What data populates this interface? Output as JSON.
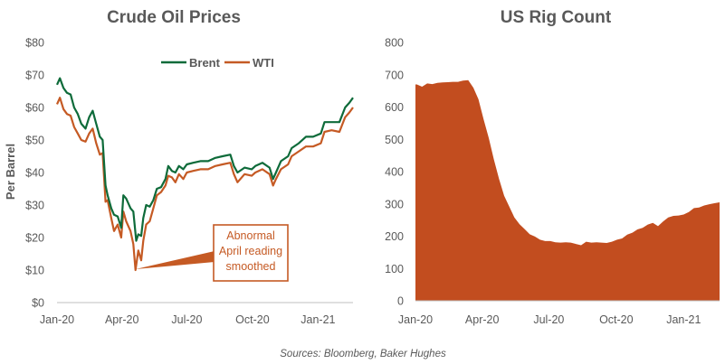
{
  "source_note": "Sources: Bloomberg, Baker Hughes",
  "colors": {
    "brent": "#0e6b3a",
    "wti": "#c55a24",
    "rig_fill": "#c24d1f",
    "annot_box": "#c55a24"
  },
  "chart_data": [
    {
      "type": "line",
      "title": "Crude Oil Prices",
      "ylabel": "Per Barrel",
      "ylim": [
        0,
        80
      ],
      "yticks": [
        "$0",
        "$10",
        "$20",
        "$30",
        "$40",
        "$50",
        "$60",
        "$70",
        "$80"
      ],
      "xticks": [
        "Jan-20",
        "Apr-20",
        "Jul-20",
        "Oct-20",
        "Jan-21"
      ],
      "xrange": [
        "2020-01-01",
        "2021-02-19"
      ],
      "legend": "top-center",
      "annotation": {
        "lines": [
          "Abnormal",
          "April reading",
          "smoothed"
        ],
        "points_to": [
          "2020-04-20",
          10
        ]
      },
      "series": [
        {
          "name": "Brent",
          "points": [
            [
              "2020-01-01",
              67
            ],
            [
              "2020-01-05",
              69
            ],
            [
              "2020-01-10",
              66
            ],
            [
              "2020-01-15",
              64.5
            ],
            [
              "2020-01-20",
              64
            ],
            [
              "2020-01-25",
              60
            ],
            [
              "2020-01-30",
              58
            ],
            [
              "2020-02-04",
              55
            ],
            [
              "2020-02-10",
              53.5
            ],
            [
              "2020-02-15",
              57
            ],
            [
              "2020-02-20",
              59
            ],
            [
              "2020-02-25",
              55
            ],
            [
              "2020-03-01",
              51
            ],
            [
              "2020-03-05",
              50
            ],
            [
              "2020-03-09",
              36
            ],
            [
              "2020-03-12",
              33
            ],
            [
              "2020-03-17",
              29
            ],
            [
              "2020-03-21",
              27
            ],
            [
              "2020-03-26",
              26.5
            ],
            [
              "2020-03-31",
              23
            ],
            [
              "2020-04-03",
              33
            ],
            [
              "2020-04-07",
              32
            ],
            [
              "2020-04-13",
              29
            ],
            [
              "2020-04-17",
              28
            ],
            [
              "2020-04-21",
              19
            ],
            [
              "2020-04-24",
              21
            ],
            [
              "2020-04-28",
              20.5
            ],
            [
              "2020-05-01",
              26
            ],
            [
              "2020-05-05",
              30
            ],
            [
              "2020-05-10",
              29.5
            ],
            [
              "2020-05-15",
              31.5
            ],
            [
              "2020-05-20",
              35
            ],
            [
              "2020-05-26",
              35.5
            ],
            [
              "2020-06-01",
              38
            ],
            [
              "2020-06-05",
              42
            ],
            [
              "2020-06-10",
              40.5
            ],
            [
              "2020-06-15",
              40
            ],
            [
              "2020-06-20",
              42
            ],
            [
              "2020-06-26",
              41
            ],
            [
              "2020-07-01",
              42.5
            ],
            [
              "2020-07-10",
              43
            ],
            [
              "2020-07-20",
              43.5
            ],
            [
              "2020-07-31",
              43.5
            ],
            [
              "2020-08-10",
              44.5
            ],
            [
              "2020-08-20",
              45
            ],
            [
              "2020-08-31",
              45.5
            ],
            [
              "2020-09-05",
              42
            ],
            [
              "2020-09-10",
              40
            ],
            [
              "2020-09-20",
              41.5
            ],
            [
              "2020-09-30",
              41
            ],
            [
              "2020-10-05",
              42
            ],
            [
              "2020-10-15",
              43
            ],
            [
              "2020-10-25",
              41.5
            ],
            [
              "2020-10-30",
              38
            ],
            [
              "2020-11-03",
              40
            ],
            [
              "2020-11-10",
              43.5
            ],
            [
              "2020-11-20",
              45
            ],
            [
              "2020-11-25",
              47.5
            ],
            [
              "2020-12-05",
              49
            ],
            [
              "2020-12-15",
              51
            ],
            [
              "2020-12-25",
              51
            ],
            [
              "2021-01-05",
              52
            ],
            [
              "2021-01-10",
              55.5
            ],
            [
              "2021-01-20",
              55.5
            ],
            [
              "2021-01-31",
              55.5
            ],
            [
              "2021-02-08",
              60
            ],
            [
              "2021-02-14",
              61.5
            ],
            [
              "2021-02-19",
              63
            ]
          ]
        },
        {
          "name": "WTI",
          "points": [
            [
              "2020-01-01",
              61
            ],
            [
              "2020-01-05",
              63
            ],
            [
              "2020-01-10",
              59.5
            ],
            [
              "2020-01-15",
              58
            ],
            [
              "2020-01-20",
              57.5
            ],
            [
              "2020-01-25",
              54
            ],
            [
              "2020-01-30",
              52
            ],
            [
              "2020-02-04",
              50
            ],
            [
              "2020-02-10",
              49.5
            ],
            [
              "2020-02-15",
              52
            ],
            [
              "2020-02-20",
              53.5
            ],
            [
              "2020-02-25",
              49
            ],
            [
              "2020-03-01",
              45.5
            ],
            [
              "2020-03-05",
              46
            ],
            [
              "2020-03-09",
              31
            ],
            [
              "2020-03-12",
              31.5
            ],
            [
              "2020-03-17",
              26
            ],
            [
              "2020-03-21",
              22
            ],
            [
              "2020-03-26",
              24
            ],
            [
              "2020-03-31",
              20
            ],
            [
              "2020-04-03",
              28
            ],
            [
              "2020-04-07",
              25
            ],
            [
              "2020-04-13",
              22
            ],
            [
              "2020-04-17",
              18
            ],
            [
              "2020-04-20",
              10
            ],
            [
              "2020-04-24",
              16
            ],
            [
              "2020-04-28",
              13
            ],
            [
              "2020-05-01",
              19
            ],
            [
              "2020-05-05",
              24
            ],
            [
              "2020-05-10",
              25
            ],
            [
              "2020-05-15",
              29
            ],
            [
              "2020-05-20",
              33
            ],
            [
              "2020-05-26",
              34
            ],
            [
              "2020-06-01",
              36
            ],
            [
              "2020-06-05",
              39
            ],
            [
              "2020-06-10",
              38.5
            ],
            [
              "2020-06-15",
              37
            ],
            [
              "2020-06-20",
              39.5
            ],
            [
              "2020-06-26",
              38
            ],
            [
              "2020-07-01",
              40
            ],
            [
              "2020-07-10",
              40.5
            ],
            [
              "2020-07-20",
              41
            ],
            [
              "2020-07-31",
              41
            ],
            [
              "2020-08-10",
              42
            ],
            [
              "2020-08-20",
              42.5
            ],
            [
              "2020-08-31",
              43
            ],
            [
              "2020-09-05",
              39.5
            ],
            [
              "2020-09-10",
              37
            ],
            [
              "2020-09-20",
              39.5
            ],
            [
              "2020-09-30",
              39
            ],
            [
              "2020-10-05",
              40
            ],
            [
              "2020-10-15",
              41
            ],
            [
              "2020-10-25",
              39.5
            ],
            [
              "2020-10-30",
              36
            ],
            [
              "2020-11-03",
              38
            ],
            [
              "2020-11-10",
              41
            ],
            [
              "2020-11-20",
              42.5
            ],
            [
              "2020-11-25",
              45
            ],
            [
              "2020-12-05",
              46.5
            ],
            [
              "2020-12-15",
              48
            ],
            [
              "2020-12-25",
              48
            ],
            [
              "2021-01-05",
              49
            ],
            [
              "2021-01-10",
              52.5
            ],
            [
              "2021-01-20",
              53
            ],
            [
              "2021-01-31",
              52.5
            ],
            [
              "2021-02-08",
              57
            ],
            [
              "2021-02-14",
              58.5
            ],
            [
              "2021-02-19",
              60
            ]
          ]
        }
      ]
    },
    {
      "type": "area",
      "title": "US Rig Count",
      "ylim": [
        0,
        800
      ],
      "yticks": [
        "0",
        "100",
        "200",
        "300",
        "400",
        "500",
        "600",
        "700",
        "800"
      ],
      "xticks": [
        "Jan-20",
        "Apr-20",
        "Jul-20",
        "Oct-20",
        "Jan-21"
      ],
      "xrange": [
        "2020-01-01",
        "2021-02-19"
      ],
      "series": [
        {
          "points": [
            [
              "2020-01-03",
              670
            ],
            [
              "2020-01-10",
              663
            ],
            [
              "2020-01-17",
              673
            ],
            [
              "2020-01-24",
              671
            ],
            [
              "2020-01-31",
              675
            ],
            [
              "2020-02-07",
              676
            ],
            [
              "2020-02-14",
              677
            ],
            [
              "2020-02-21",
              678
            ],
            [
              "2020-02-28",
              678
            ],
            [
              "2020-03-06",
              682
            ],
            [
              "2020-03-13",
              683
            ],
            [
              "2020-03-20",
              660
            ],
            [
              "2020-03-27",
              624
            ],
            [
              "2020-04-03",
              562
            ],
            [
              "2020-04-10",
              504
            ],
            [
              "2020-04-17",
              438
            ],
            [
              "2020-04-24",
              378
            ],
            [
              "2020-05-01",
              325
            ],
            [
              "2020-05-08",
              292
            ],
            [
              "2020-05-15",
              258
            ],
            [
              "2020-05-22",
              237
            ],
            [
              "2020-05-29",
              222
            ],
            [
              "2020-06-05",
              206
            ],
            [
              "2020-06-12",
              199
            ],
            [
              "2020-06-19",
              189
            ],
            [
              "2020-06-26",
              185
            ],
            [
              "2020-07-03",
              185
            ],
            [
              "2020-07-10",
              181
            ],
            [
              "2020-07-17",
              180
            ],
            [
              "2020-07-24",
              181
            ],
            [
              "2020-07-31",
              180
            ],
            [
              "2020-08-07",
              176
            ],
            [
              "2020-08-14",
              172
            ],
            [
              "2020-08-21",
              183
            ],
            [
              "2020-08-28",
              180
            ],
            [
              "2020-09-04",
              181
            ],
            [
              "2020-09-11",
              180
            ],
            [
              "2020-09-18",
              179
            ],
            [
              "2020-09-25",
              183
            ],
            [
              "2020-10-02",
              189
            ],
            [
              "2020-10-09",
              193
            ],
            [
              "2020-10-16",
              205
            ],
            [
              "2020-10-23",
              211
            ],
            [
              "2020-10-30",
              221
            ],
            [
              "2020-11-06",
              226
            ],
            [
              "2020-11-13",
              236
            ],
            [
              "2020-11-20",
              241
            ],
            [
              "2020-11-27",
              231
            ],
            [
              "2020-12-04",
              246
            ],
            [
              "2020-12-11",
              258
            ],
            [
              "2020-12-18",
              263
            ],
            [
              "2020-12-25",
              264
            ],
            [
              "2021-01-01",
              267
            ],
            [
              "2021-01-08",
              275
            ],
            [
              "2021-01-15",
              287
            ],
            [
              "2021-01-22",
              289
            ],
            [
              "2021-01-29",
              295
            ],
            [
              "2021-02-05",
              299
            ],
            [
              "2021-02-12",
              302
            ],
            [
              "2021-02-19",
              305
            ]
          ]
        }
      ]
    }
  ]
}
